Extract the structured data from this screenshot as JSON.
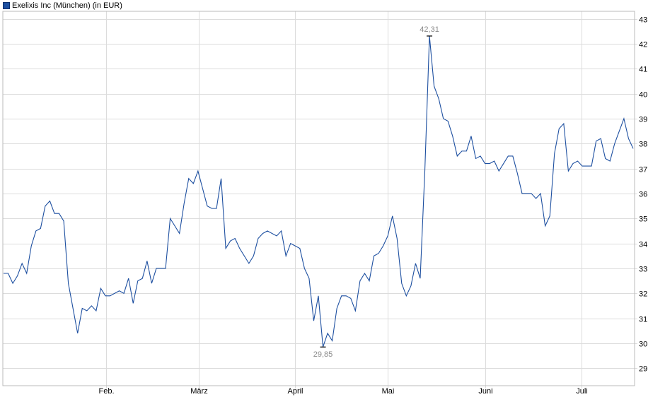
{
  "legend": {
    "label": "Exelixis Inc (München) (in EUR)",
    "color": "#1d4fa0"
  },
  "chart_data": {
    "type": "line",
    "title": "",
    "xlabel": "",
    "ylabel": "",
    "x_tick_labels": [
      "Feb.",
      "März",
      "April",
      "Mai",
      "Juni",
      "Juli"
    ],
    "y_ticks": [
      29,
      30,
      31,
      32,
      33,
      34,
      35,
      36,
      37,
      38,
      39,
      40,
      41,
      42,
      43
    ],
    "ylim": [
      28.3,
      43.3
    ],
    "grid": true,
    "series": [
      {
        "name": "Exelixis Inc (München) (in EUR)",
        "color": "#1d4fa0",
        "values": [
          32.8,
          32.8,
          32.4,
          32.7,
          33.2,
          32.8,
          33.9,
          34.5,
          34.6,
          35.5,
          35.7,
          35.2,
          35.2,
          34.9,
          32.4,
          31.4,
          30.4,
          31.4,
          31.3,
          31.5,
          31.3,
          32.2,
          31.9,
          31.9,
          32.0,
          32.1,
          32.0,
          32.6,
          31.6,
          32.5,
          32.6,
          33.3,
          32.4,
          33.0,
          33.0,
          33.0,
          35.0,
          34.7,
          34.4,
          35.6,
          36.6,
          36.4,
          36.9,
          36.2,
          35.5,
          35.4,
          35.4,
          36.6,
          33.8,
          34.1,
          34.2,
          33.8,
          33.5,
          33.2,
          33.5,
          34.2,
          34.4,
          34.5,
          34.4,
          34.3,
          34.5,
          33.5,
          34.0,
          33.9,
          33.8,
          33.0,
          32.6,
          30.9,
          31.9,
          29.85,
          30.4,
          30.1,
          31.4,
          31.9,
          31.9,
          31.8,
          31.3,
          32.5,
          32.8,
          32.5,
          33.5,
          33.6,
          33.9,
          34.3,
          35.1,
          34.2,
          32.4,
          31.9,
          32.3,
          33.2,
          32.6,
          36.9,
          42.31,
          40.3,
          39.8,
          39.0,
          38.9,
          38.3,
          37.5,
          37.7,
          37.7,
          38.3,
          37.4,
          37.5,
          37.2,
          37.2,
          37.3,
          36.9,
          37.2,
          37.5,
          37.5,
          36.8,
          36.0,
          36.0,
          36.0,
          35.8,
          36.0,
          34.7,
          35.1,
          37.6,
          38.6,
          38.8,
          36.9,
          37.2,
          37.3,
          37.1,
          37.1,
          37.1,
          38.1,
          38.2,
          37.4,
          37.3,
          38.0,
          38.5,
          39.0,
          38.2,
          37.8
        ]
      }
    ],
    "annotations": [
      {
        "label": "42,31",
        "value": 42.31,
        "type": "max"
      },
      {
        "label": "29,85",
        "value": 29.85,
        "type": "min"
      }
    ]
  }
}
